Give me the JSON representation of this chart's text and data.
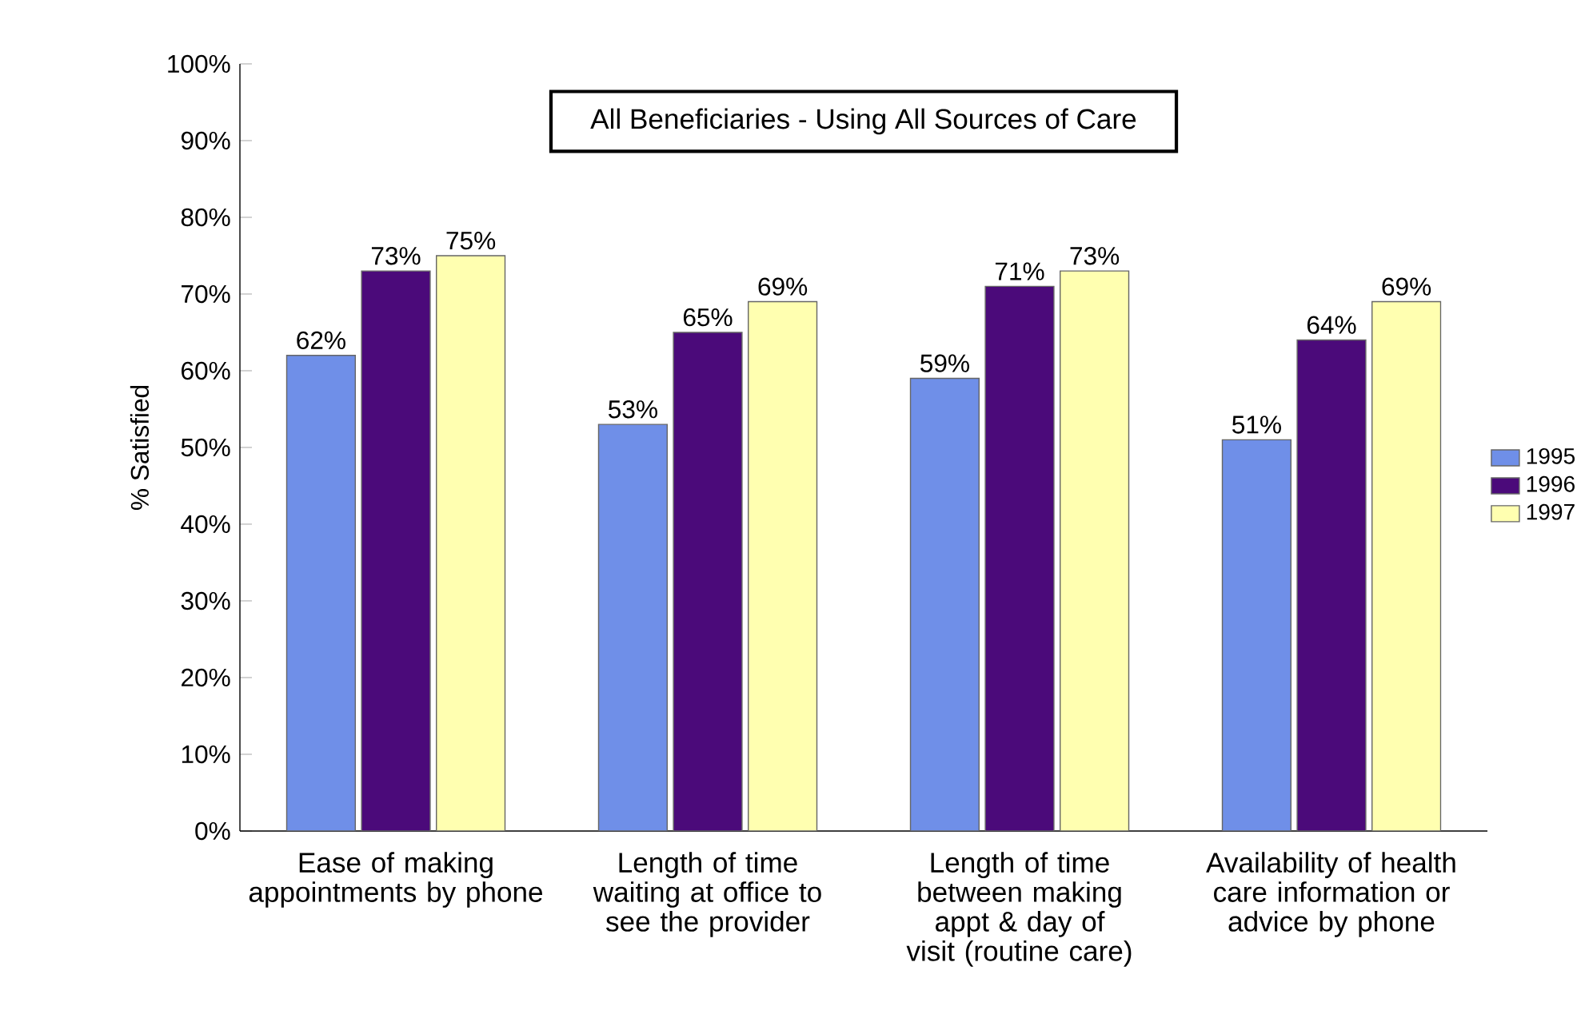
{
  "chart_data": {
    "type": "bar",
    "title": "All Beneficiaries - Using All Sources of Care",
    "ylabel": "% Satisfied",
    "categories": [
      "Ease of making appointments by phone",
      "Length of time waiting at office to see the provider",
      "Length of time between making appt & day of visit (routine care)",
      "Availability of health care information or advice by phone"
    ],
    "series": [
      {
        "name": "1995",
        "color": "#6f8fe8",
        "values": [
          62,
          53,
          59,
          51
        ],
        "value_labels": [
          "62%",
          "53%",
          "59%",
          "51%"
        ]
      },
      {
        "name": "1996",
        "color": "#4b0a7a",
        "values": [
          73,
          65,
          71,
          64
        ],
        "value_labels": [
          "73%",
          "65%",
          "71%",
          "64%"
        ]
      },
      {
        "name": "1997",
        "color": "#ffffb0",
        "values": [
          75,
          69,
          73,
          69
        ],
        "value_labels": [
          "75%",
          "69%",
          "73%",
          "69%"
        ]
      }
    ],
    "ylim": [
      0,
      100
    ],
    "yticks": [
      {
        "value": 0,
        "label": "0%"
      },
      {
        "value": 10,
        "label": "10%"
      },
      {
        "value": 20,
        "label": "20%"
      },
      {
        "value": 30,
        "label": "30%"
      },
      {
        "value": 40,
        "label": "40%"
      },
      {
        "value": 50,
        "label": "50%"
      },
      {
        "value": 60,
        "label": "60%"
      },
      {
        "value": 70,
        "label": "70%"
      },
      {
        "value": 80,
        "label": "80%"
      },
      {
        "value": 90,
        "label": "90%"
      },
      {
        "value": 100,
        "label": "100%"
      }
    ],
    "legend": "right"
  }
}
